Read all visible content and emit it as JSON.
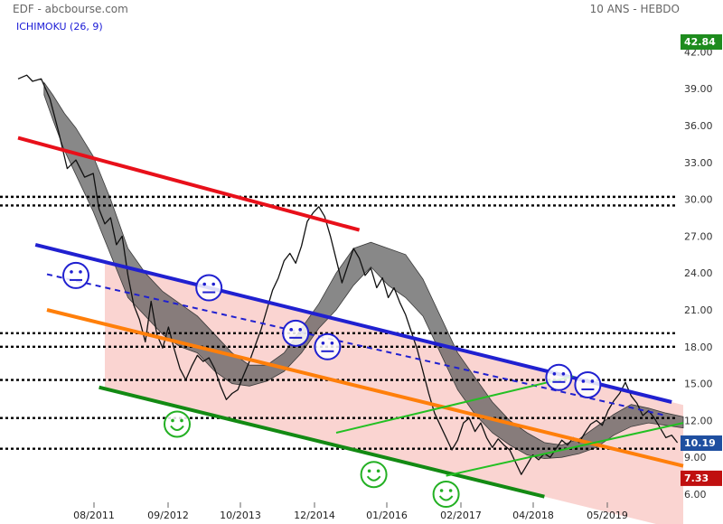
{
  "header": {
    "source": "EDF - abcbourse.com",
    "period": "10 ANS - HEBDO",
    "indicator": "ICHIMOKU (26, 9)"
  },
  "chart_data": {
    "type": "line",
    "title": "",
    "ylim": [
      5.5,
      43.5
    ],
    "y_ticks": [
      {
        "value": 42,
        "label": "42.00"
      },
      {
        "value": 39,
        "label": "39.00"
      },
      {
        "value": 36,
        "label": "36.00"
      },
      {
        "value": 33,
        "label": "33.00"
      },
      {
        "value": 30,
        "label": "30.00"
      },
      {
        "value": 27,
        "label": "27.00"
      },
      {
        "value": 24,
        "label": "24.00"
      },
      {
        "value": 21,
        "label": "21.00"
      },
      {
        "value": 18,
        "label": "18.00"
      },
      {
        "value": 15,
        "label": "15.00"
      },
      {
        "value": 12,
        "label": "12.00"
      },
      {
        "value": 9,
        "label": "9.00"
      },
      {
        "value": 6,
        "label": "6.00"
      }
    ],
    "x_ticks": [
      "08/2011",
      "09/2012",
      "10/2013",
      "12/2014",
      "01/2016",
      "02/2017",
      "04/2018",
      "05/2019"
    ],
    "price_tags": [
      {
        "label": "42.84",
        "value": 42.84,
        "color": "#1e8c1e"
      },
      {
        "label": "10.19",
        "value": 10.19,
        "color": "#1f4fa0"
      },
      {
        "label": "7.33",
        "value": 7.33,
        "color": "#c01010"
      }
    ],
    "horizontal_levels": [
      30.2,
      29.5,
      19.1,
      18.0,
      15.3,
      12.2,
      9.7
    ],
    "price_series": [
      [
        0,
        39.8
      ],
      [
        0.15,
        40.1
      ],
      [
        0.25,
        39.6
      ],
      [
        0.4,
        39.8
      ],
      [
        0.55,
        38.2
      ],
      [
        0.7,
        35.5
      ],
      [
        0.85,
        32.5
      ],
      [
        1.0,
        33.2
      ],
      [
        1.15,
        31.8
      ],
      [
        1.3,
        32.1
      ],
      [
        1.4,
        29.2
      ],
      [
        1.5,
        28.0
      ],
      [
        1.6,
        28.5
      ],
      [
        1.7,
        26.3
      ],
      [
        1.8,
        27.0
      ],
      [
        1.9,
        23.8
      ],
      [
        2.0,
        21.4
      ],
      [
        2.1,
        20.2
      ],
      [
        2.2,
        18.4
      ],
      [
        2.3,
        21.7
      ],
      [
        2.4,
        19.0
      ],
      [
        2.5,
        17.9
      ],
      [
        2.6,
        19.6
      ],
      [
        2.7,
        17.8
      ],
      [
        2.8,
        16.2
      ],
      [
        2.9,
        15.3
      ],
      [
        3.0,
        16.4
      ],
      [
        3.1,
        17.3
      ],
      [
        3.2,
        16.8
      ],
      [
        3.3,
        17.1
      ],
      [
        3.4,
        16.2
      ],
      [
        3.5,
        14.8
      ],
      [
        3.6,
        13.7
      ],
      [
        3.7,
        14.2
      ],
      [
        3.8,
        14.5
      ],
      [
        3.9,
        15.7
      ],
      [
        4.0,
        16.8
      ],
      [
        4.1,
        18.1
      ],
      [
        4.2,
        19.4
      ],
      [
        4.3,
        21.0
      ],
      [
        4.4,
        22.6
      ],
      [
        4.5,
        23.6
      ],
      [
        4.6,
        25.0
      ],
      [
        4.7,
        25.6
      ],
      [
        4.8,
        24.8
      ],
      [
        4.9,
        26.2
      ],
      [
        5.0,
        28.2
      ],
      [
        5.1,
        28.9
      ],
      [
        5.2,
        29.4
      ],
      [
        5.3,
        28.6
      ],
      [
        5.4,
        27.0
      ],
      [
        5.5,
        25.1
      ],
      [
        5.6,
        23.2
      ],
      [
        5.7,
        24.6
      ],
      [
        5.8,
        26.0
      ],
      [
        5.9,
        25.2
      ],
      [
        6.0,
        23.8
      ],
      [
        6.1,
        24.4
      ],
      [
        6.2,
        22.8
      ],
      [
        6.3,
        23.6
      ],
      [
        6.4,
        22.0
      ],
      [
        6.5,
        22.8
      ],
      [
        6.6,
        21.6
      ],
      [
        6.7,
        20.6
      ],
      [
        6.8,
        19.2
      ],
      [
        6.9,
        17.8
      ],
      [
        7.0,
        16.0
      ],
      [
        7.1,
        14.2
      ],
      [
        7.2,
        12.6
      ],
      [
        7.3,
        11.6
      ],
      [
        7.4,
        10.6
      ],
      [
        7.5,
        9.6
      ],
      [
        7.6,
        10.4
      ],
      [
        7.7,
        11.8
      ],
      [
        7.8,
        12.2
      ],
      [
        7.9,
        11.1
      ],
      [
        8.0,
        11.8
      ],
      [
        8.1,
        10.6
      ],
      [
        8.2,
        9.8
      ],
      [
        8.3,
        10.5
      ],
      [
        8.4,
        10.0
      ],
      [
        8.5,
        9.6
      ],
      [
        8.6,
        8.6
      ],
      [
        8.7,
        7.6
      ],
      [
        8.8,
        8.4
      ],
      [
        8.9,
        9.2
      ],
      [
        9.0,
        8.8
      ],
      [
        9.1,
        9.3
      ],
      [
        9.2,
        9.0
      ],
      [
        9.3,
        9.7
      ],
      [
        9.4,
        10.4
      ],
      [
        9.5,
        10.0
      ],
      [
        9.6,
        10.6
      ],
      [
        9.7,
        10.2
      ],
      [
        9.8,
        11.0
      ],
      [
        9.9,
        11.7
      ],
      [
        10.0,
        12.0
      ],
      [
        10.1,
        11.6
      ],
      [
        10.2,
        12.8
      ],
      [
        10.3,
        13.6
      ],
      [
        10.4,
        14.2
      ],
      [
        10.5,
        15.1
      ],
      [
        10.6,
        14.0
      ],
      [
        10.7,
        13.4
      ],
      [
        10.8,
        12.4
      ],
      [
        10.9,
        12.8
      ],
      [
        11.0,
        12.2
      ],
      [
        11.1,
        11.4
      ],
      [
        11.2,
        10.6
      ],
      [
        11.3,
        10.8
      ],
      [
        11.4,
        10.19
      ]
    ],
    "cloud_upper": [
      [
        0.45,
        39.5
      ],
      [
        0.6,
        38.5
      ],
      [
        0.8,
        37.0
      ],
      [
        1.0,
        35.8
      ],
      [
        1.3,
        33.5
      ],
      [
        1.6,
        30.0
      ],
      [
        1.9,
        26.0
      ],
      [
        2.2,
        24.0
      ],
      [
        2.5,
        22.5
      ],
      [
        2.8,
        21.5
      ],
      [
        3.1,
        20.5
      ],
      [
        3.4,
        19.0
      ],
      [
        3.7,
        17.5
      ],
      [
        4.0,
        16.5
      ],
      [
        4.3,
        16.5
      ],
      [
        4.6,
        17.5
      ],
      [
        4.9,
        19.5
      ],
      [
        5.2,
        21.5
      ],
      [
        5.5,
        24.0
      ],
      [
        5.8,
        26.0
      ],
      [
        6.1,
        26.5
      ],
      [
        6.4,
        26.0
      ],
      [
        6.7,
        25.5
      ],
      [
        7.0,
        23.5
      ],
      [
        7.3,
        20.5
      ],
      [
        7.6,
        17.5
      ],
      [
        7.9,
        15.5
      ],
      [
        8.2,
        13.5
      ],
      [
        8.5,
        12.0
      ],
      [
        8.8,
        11.0
      ],
      [
        9.1,
        10.2
      ],
      [
        9.4,
        10.0
      ],
      [
        9.7,
        10.5
      ],
      [
        10.0,
        11.5
      ],
      [
        10.3,
        12.5
      ],
      [
        10.6,
        13.3
      ],
      [
        10.9,
        13.0
      ],
      [
        11.2,
        12.6
      ],
      [
        11.5,
        12.3
      ]
    ],
    "cloud_lower": [
      [
        0.45,
        38.5
      ],
      [
        0.6,
        36.5
      ],
      [
        0.8,
        34.0
      ],
      [
        1.0,
        32.0
      ],
      [
        1.3,
        29.0
      ],
      [
        1.6,
        25.5
      ],
      [
        1.9,
        22.0
      ],
      [
        2.2,
        20.5
      ],
      [
        2.5,
        19.0
      ],
      [
        2.8,
        18.0
      ],
      [
        3.1,
        17.5
      ],
      [
        3.4,
        16.0
      ],
      [
        3.7,
        15.0
      ],
      [
        4.0,
        14.8
      ],
      [
        4.3,
        15.2
      ],
      [
        4.6,
        16.0
      ],
      [
        4.9,
        17.5
      ],
      [
        5.2,
        19.5
      ],
      [
        5.5,
        21.0
      ],
      [
        5.8,
        23.0
      ],
      [
        6.1,
        24.5
      ],
      [
        6.4,
        23.0
      ],
      [
        6.7,
        22.0
      ],
      [
        7.0,
        20.5
      ],
      [
        7.3,
        17.5
      ],
      [
        7.6,
        14.5
      ],
      [
        7.9,
        12.5
      ],
      [
        8.2,
        11.0
      ],
      [
        8.5,
        10.0
      ],
      [
        8.8,
        9.2
      ],
      [
        9.1,
        8.9
      ],
      [
        9.4,
        9.0
      ],
      [
        9.7,
        9.3
      ],
      [
        10.0,
        9.8
      ],
      [
        10.3,
        10.8
      ],
      [
        10.6,
        11.5
      ],
      [
        10.9,
        11.8
      ],
      [
        11.2,
        11.6
      ],
      [
        11.5,
        11.4
      ]
    ],
    "trend_lines": [
      {
        "name": "red",
        "color": "#e8101a",
        "width": 4,
        "dashed": false,
        "from": [
          0,
          35.0
        ],
        "to": [
          5.9,
          27.5
        ]
      },
      {
        "name": "blue",
        "color": "#2020d0",
        "width": 4,
        "dashed": false,
        "from": [
          0.3,
          26.3
        ],
        "to": [
          11.3,
          13.5
        ]
      },
      {
        "name": "blue-dashed",
        "color": "#2020d0",
        "width": 2,
        "dashed": true,
        "from": [
          0.5,
          23.9
        ],
        "to": [
          11.2,
          12.4
        ]
      },
      {
        "name": "orange",
        "color": "#ff7f0a",
        "width": 4,
        "dashed": false,
        "from": [
          0.5,
          21.0
        ],
        "to": [
          11.5,
          8.3
        ]
      },
      {
        "name": "green-lower",
        "color": "#138a13",
        "width": 4,
        "dashed": false,
        "from": [
          1.4,
          14.7
        ],
        "to": [
          9.1,
          5.8
        ]
      },
      {
        "name": "green-channel-bottom",
        "color": "#23c023",
        "width": 2,
        "dashed": false,
        "from": [
          7.4,
          7.5
        ],
        "to": [
          11.5,
          11.8
        ]
      },
      {
        "name": "green-channel-top",
        "color": "#23c023",
        "width": 2,
        "dashed": false,
        "from": [
          5.5,
          11.0
        ],
        "to": [
          9.6,
          15.6
        ]
      }
    ],
    "shaded_channel_color": "#f8c6c2",
    "annotations": [
      {
        "mood": "neutral",
        "color": "#2020d0",
        "x": 1.0,
        "y": 23.8
      },
      {
        "mood": "neutral",
        "color": "#2020d0",
        "x": 3.3,
        "y": 22.8
      },
      {
        "mood": "neutral",
        "color": "#2020d0",
        "x": 4.8,
        "y": 19.1
      },
      {
        "mood": "neutral",
        "color": "#2020d0",
        "x": 5.35,
        "y": 18.0
      },
      {
        "mood": "neutral",
        "color": "#2020d0",
        "x": 9.35,
        "y": 15.5
      },
      {
        "mood": "neutral",
        "color": "#2020d0",
        "x": 9.85,
        "y": 14.9
      },
      {
        "mood": "happy",
        "color": "#23b023",
        "x": 2.75,
        "y": 11.7
      },
      {
        "mood": "happy",
        "color": "#23b023",
        "x": 6.15,
        "y": 7.6
      },
      {
        "mood": "happy",
        "color": "#23b023",
        "x": 7.4,
        "y": 6.0
      }
    ]
  }
}
